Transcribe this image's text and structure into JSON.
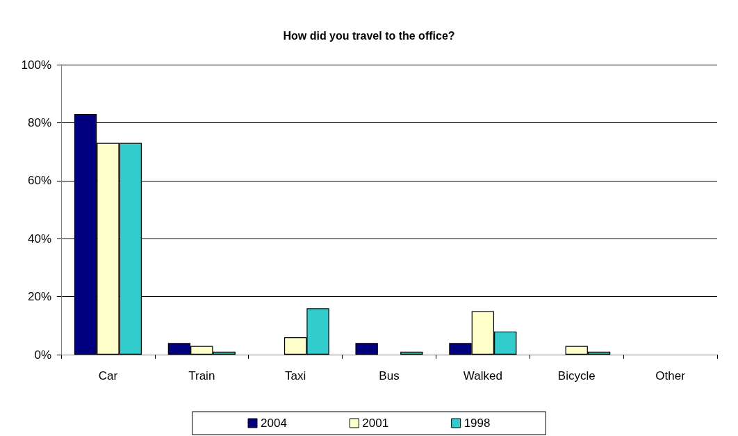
{
  "chart_data": {
    "type": "bar",
    "title": "How did you travel to the office?",
    "categories": [
      "Car",
      "Train",
      "Taxi",
      "Bus",
      "Walked",
      "Bicycle",
      "Other"
    ],
    "series": [
      {
        "name": "2004",
        "color": "#000080",
        "values": [
          83,
          4,
          0,
          4,
          4,
          0,
          0
        ]
      },
      {
        "name": "2001",
        "color": "#ffffcc",
        "values": [
          73,
          3,
          6,
          0,
          15,
          3,
          0
        ]
      },
      {
        "name": "1998",
        "color": "#33cccc",
        "values": [
          73,
          1,
          16,
          1,
          8,
          1,
          0
        ]
      }
    ],
    "ylim": [
      0,
      100
    ],
    "yticks": [
      {
        "value": 0,
        "label": "0%"
      },
      {
        "value": 20,
        "label": "20%"
      },
      {
        "value": 40,
        "label": "40%"
      },
      {
        "value": 60,
        "label": "60%"
      },
      {
        "value": 80,
        "label": "80%"
      },
      {
        "value": 100,
        "label": "100%"
      }
    ],
    "grid": "y",
    "legend": "bottom"
  }
}
